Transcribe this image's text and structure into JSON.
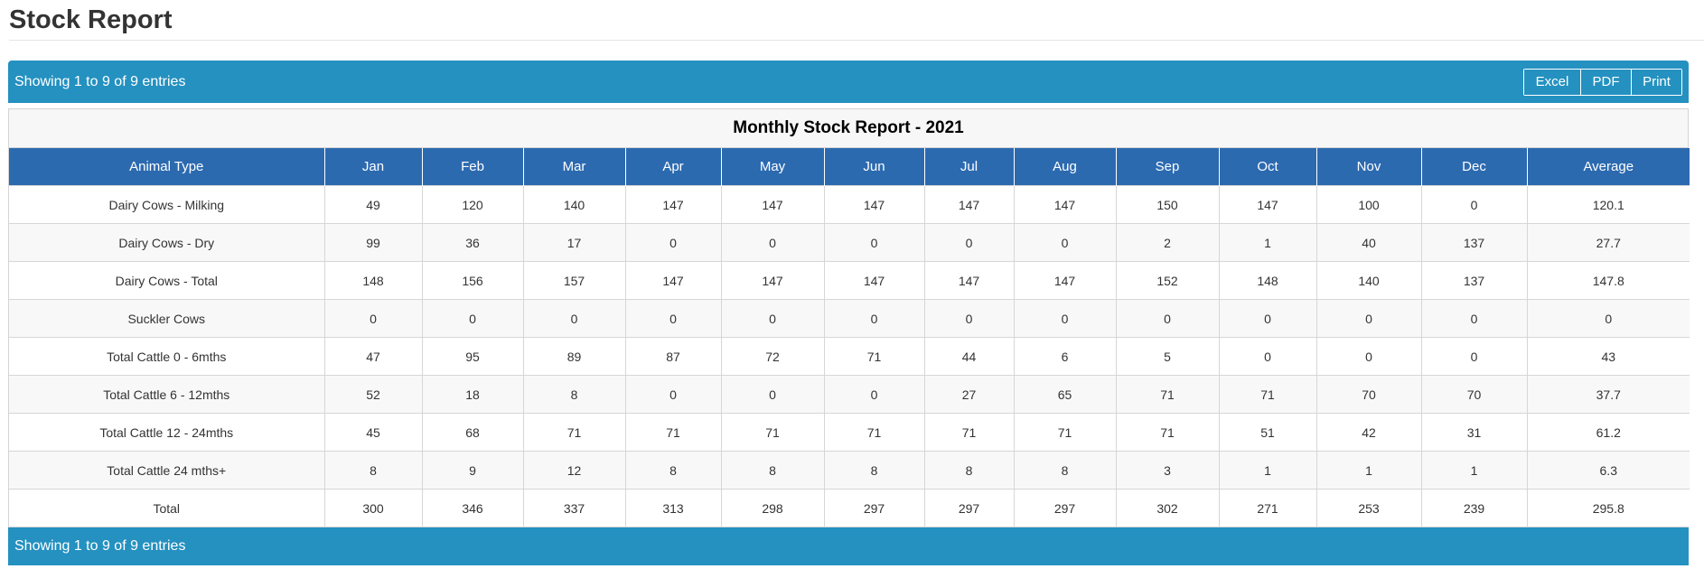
{
  "page": {
    "title": "Stock Report"
  },
  "toolbar": {
    "info_text": "Showing 1 to 9 of 9 entries",
    "excel_label": "Excel",
    "pdf_label": "PDF",
    "print_label": "Print"
  },
  "footer": {
    "info_text": "Showing 1 to 9 of 9 entries"
  },
  "colors": {
    "bar_blue": "#2491c0",
    "header_blue": "#2c6ab0"
  },
  "table": {
    "caption": "Monthly Stock Report - 2021",
    "columns": [
      "Animal Type",
      "Jan",
      "Feb",
      "Mar",
      "Apr",
      "May",
      "Jun",
      "Jul",
      "Aug",
      "Sep",
      "Oct",
      "Nov",
      "Dec",
      "Average"
    ],
    "rows": [
      [
        "Dairy Cows - Milking",
        "49",
        "120",
        "140",
        "147",
        "147",
        "147",
        "147",
        "147",
        "150",
        "147",
        "100",
        "0",
        "120.1"
      ],
      [
        "Dairy Cows - Dry",
        "99",
        "36",
        "17",
        "0",
        "0",
        "0",
        "0",
        "0",
        "2",
        "1",
        "40",
        "137",
        "27.7"
      ],
      [
        "Dairy Cows - Total",
        "148",
        "156",
        "157",
        "147",
        "147",
        "147",
        "147",
        "147",
        "152",
        "148",
        "140",
        "137",
        "147.8"
      ],
      [
        "Suckler Cows",
        "0",
        "0",
        "0",
        "0",
        "0",
        "0",
        "0",
        "0",
        "0",
        "0",
        "0",
        "0",
        "0"
      ],
      [
        "Total Cattle 0 - 6mths",
        "47",
        "95",
        "89",
        "87",
        "72",
        "71",
        "44",
        "6",
        "5",
        "0",
        "0",
        "0",
        "43"
      ],
      [
        "Total Cattle 6 - 12mths",
        "52",
        "18",
        "8",
        "0",
        "0",
        "0",
        "27",
        "65",
        "71",
        "71",
        "70",
        "70",
        "37.7"
      ],
      [
        "Total Cattle 12 - 24mths",
        "45",
        "68",
        "71",
        "71",
        "71",
        "71",
        "71",
        "71",
        "71",
        "51",
        "42",
        "31",
        "61.2"
      ],
      [
        "Total Cattle 24 mths+",
        "8",
        "9",
        "12",
        "8",
        "8",
        "8",
        "8",
        "8",
        "3",
        "1",
        "1",
        "1",
        "6.3"
      ],
      [
        "Total",
        "300",
        "346",
        "337",
        "313",
        "298",
        "297",
        "297",
        "297",
        "302",
        "271",
        "253",
        "239",
        "295.8"
      ]
    ]
  }
}
